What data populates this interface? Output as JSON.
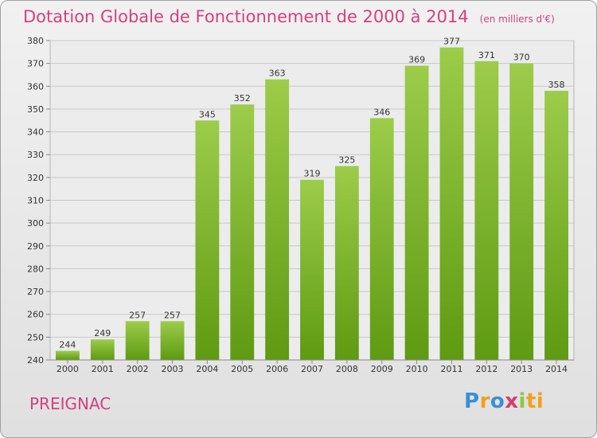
{
  "header": {
    "title": "Dotation Globale de Fonctionnement de 2000 à 2014",
    "unit": "(en milliers d'€)"
  },
  "footer": {
    "commune": "PREIGNAC",
    "logo_letters": [
      "P",
      "r",
      "o",
      "x",
      "i",
      "ti"
    ]
  },
  "colors": {
    "accent": "#d3417f",
    "bar_top": "#9ccc4a",
    "bar_bottom": "#5e9a12"
  },
  "chart_data": {
    "type": "bar",
    "title": "Dotation Globale de Fonctionnement de 2000 à 2014",
    "xlabel": "",
    "ylabel": "",
    "categories": [
      "2000",
      "2001",
      "2002",
      "2003",
      "2004",
      "2005",
      "2006",
      "2007",
      "2008",
      "2009",
      "2010",
      "2011",
      "2012",
      "2013",
      "2014"
    ],
    "values": [
      244,
      249,
      257,
      257,
      345,
      352,
      363,
      319,
      325,
      346,
      369,
      377,
      371,
      370,
      358
    ],
    "ylim": [
      240,
      380
    ],
    "yticks": [
      240,
      250,
      260,
      270,
      280,
      290,
      300,
      310,
      320,
      330,
      340,
      350,
      360,
      370,
      380
    ],
    "grid": true,
    "legend": "none"
  }
}
